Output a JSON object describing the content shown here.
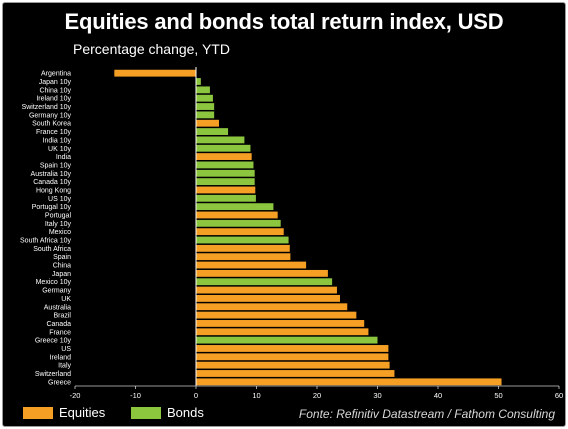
{
  "chart_data": {
    "type": "bar",
    "orientation": "horizontal",
    "title": "Equities and bonds total return index, USD",
    "subtitle": "Percentage change, YTD",
    "xlim": [
      -20,
      60
    ],
    "xticks": [
      -20,
      -10,
      0,
      10,
      20,
      30,
      40,
      50,
      60
    ],
    "grid": false,
    "legend_position": "bottom-left",
    "colors": {
      "Equities": "#f5a024",
      "Bonds": "#8cc63f"
    },
    "series": [
      {
        "name": "Equities"
      },
      {
        "name": "Bonds"
      }
    ],
    "categories": [
      "Argentina",
      "Japan 10y",
      "China 10y",
      "Ireland 10y",
      "Switzerland 10y",
      "Germany 10y",
      "South Korea",
      "France 10y",
      "India 10y",
      "UK 10y",
      "India",
      "Spain 10y",
      "Australia 10y",
      "Canada 10y",
      "Hong Kong",
      "US 10y",
      "Portugal 10y",
      "Portugal",
      "Italy 10y",
      "Mexico",
      "South Africa 10y",
      "South Africa",
      "Spain",
      "China",
      "Japan",
      "Mexico 10y",
      "Germany",
      "UK",
      "Australia",
      "Brazil",
      "Canada",
      "France",
      "Greece 10y",
      "US",
      "Ireland",
      "Italy",
      "Switzerland",
      "Greece"
    ],
    "values": [
      -13.5,
      0.8,
      2.3,
      2.8,
      3.0,
      3.0,
      3.8,
      5.3,
      8.0,
      9.0,
      9.2,
      9.5,
      9.7,
      9.7,
      9.8,
      9.9,
      12.8,
      13.5,
      14.0,
      14.5,
      15.3,
      15.5,
      15.6,
      18.2,
      21.8,
      22.5,
      23.3,
      23.8,
      25.0,
      26.5,
      27.8,
      28.5,
      30.0,
      31.8,
      31.8,
      32.0,
      32.8,
      50.5
    ],
    "types": [
      "Equities",
      "Bonds",
      "Bonds",
      "Bonds",
      "Bonds",
      "Bonds",
      "Equities",
      "Bonds",
      "Bonds",
      "Bonds",
      "Equities",
      "Bonds",
      "Bonds",
      "Bonds",
      "Equities",
      "Bonds",
      "Bonds",
      "Equities",
      "Bonds",
      "Equities",
      "Bonds",
      "Equities",
      "Equities",
      "Equities",
      "Equities",
      "Bonds",
      "Equities",
      "Equities",
      "Equities",
      "Equities",
      "Equities",
      "Equities",
      "Bonds",
      "Equities",
      "Equities",
      "Equities",
      "Equities",
      "Equities"
    ]
  },
  "source": "Fonte: Refinitiv Datastream / Fathom Consulting"
}
